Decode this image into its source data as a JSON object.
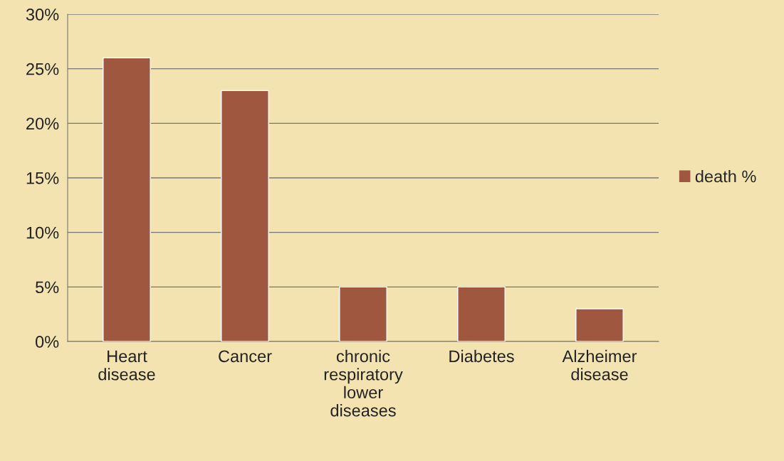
{
  "chart_data": {
    "type": "bar",
    "categories": [
      "Heart\ndisease",
      "Cancer",
      "chronic\nrespiratory\nlower\ndiseases",
      "Diabetes",
      "Alzheimer\ndisease"
    ],
    "series": [
      {
        "name": "death %",
        "color": "#a0573f",
        "values": [
          26,
          23,
          5,
          5,
          3
        ]
      }
    ],
    "ylim": [
      0,
      30
    ],
    "yticks": [
      {
        "value": 0,
        "label": "0%"
      },
      {
        "value": 5,
        "label": "5%"
      },
      {
        "value": 10,
        "label": "10%"
      },
      {
        "value": 15,
        "label": "15%"
      },
      {
        "value": 20,
        "label": "20%"
      },
      {
        "value": 25,
        "label": "25%"
      },
      {
        "value": 30,
        "label": "30%"
      }
    ],
    "grid": "y",
    "legend": "right"
  }
}
